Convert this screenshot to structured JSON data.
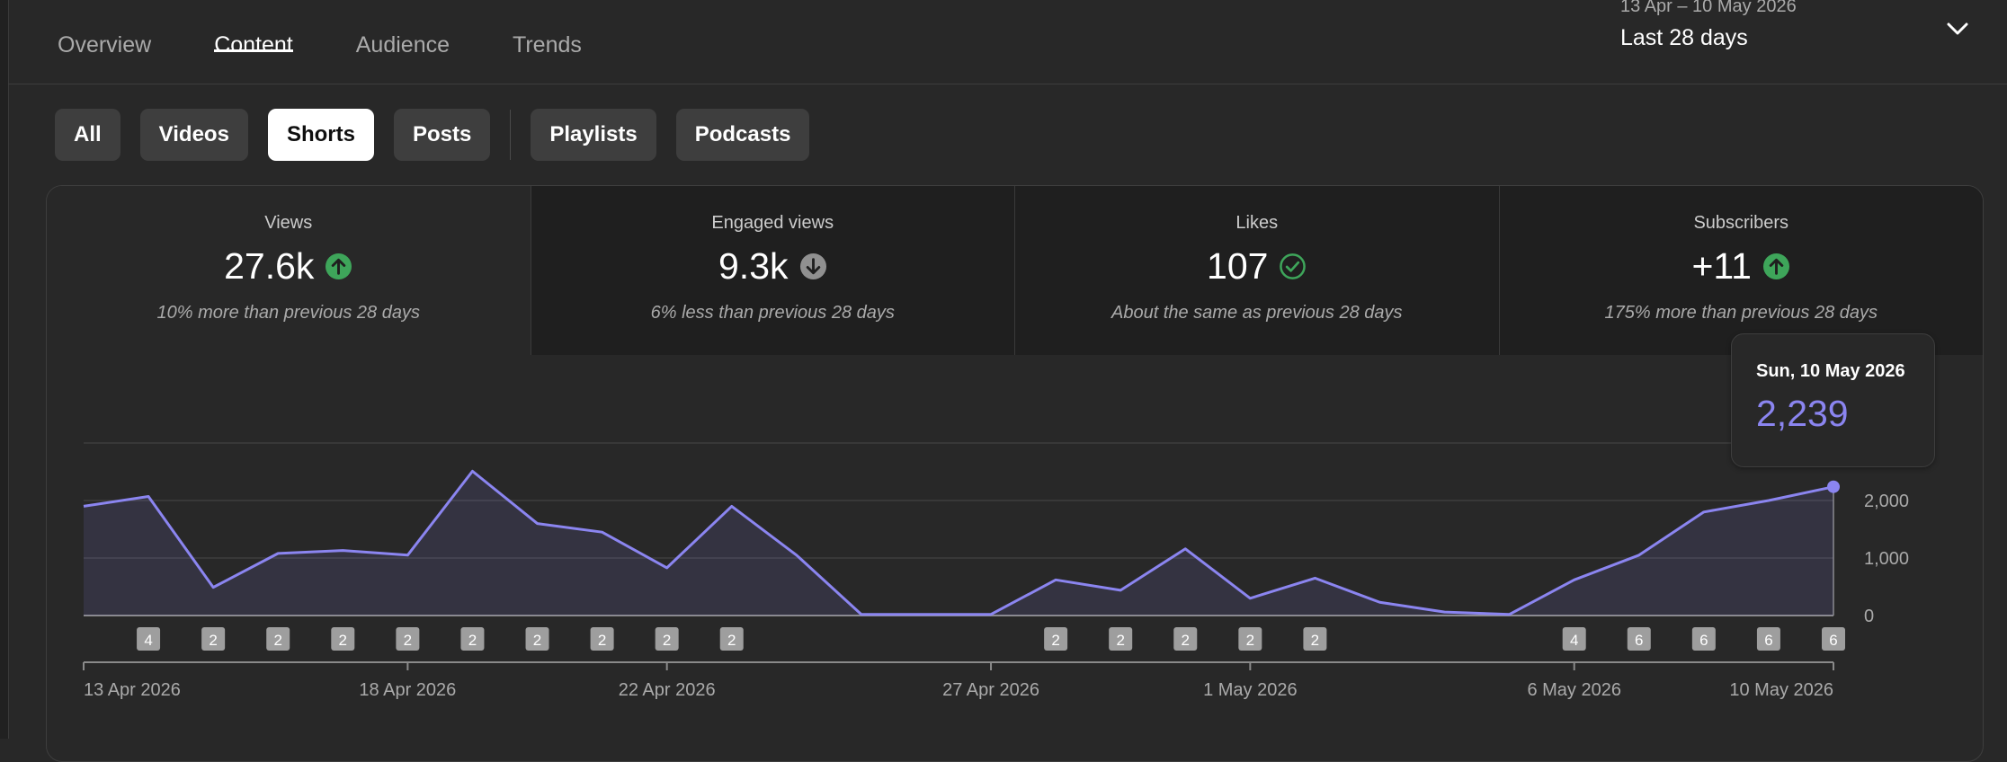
{
  "tabs": [
    {
      "label": "Overview",
      "active": false
    },
    {
      "label": "Content",
      "active": true
    },
    {
      "label": "Audience",
      "active": false
    },
    {
      "label": "Trends",
      "active": false
    }
  ],
  "date_picker": {
    "range": "13 Apr – 10 May 2026",
    "label": "Last 28 days",
    "icon": "chevron-down-icon"
  },
  "chips": [
    {
      "label": "All",
      "active": false
    },
    {
      "label": "Videos",
      "active": false
    },
    {
      "label": "Shorts",
      "active": true
    },
    {
      "label": "Posts",
      "active": false
    },
    {
      "label": "Playlists",
      "active": false
    },
    {
      "label": "Podcasts",
      "active": false
    }
  ],
  "metrics": [
    {
      "label": "Views",
      "value": "27.6k",
      "note": "10% more than previous 28 days",
      "trend": "up",
      "icon": "arrow-up-icon"
    },
    {
      "label": "Engaged views",
      "value": "9.3k",
      "note": "6% less than previous 28 days",
      "trend": "down",
      "icon": "arrow-down-icon"
    },
    {
      "label": "Likes",
      "value": "107",
      "note": "About the same as previous 28 days",
      "trend": "same",
      "icon": "check-circle-icon"
    },
    {
      "label": "Subscribers",
      "value": "+11",
      "note": "175% more than previous 28 days",
      "trend": "up",
      "icon": "arrow-up-icon"
    }
  ],
  "colors": {
    "accent": "#8b85f0",
    "up": "#3ea55a",
    "down": "#909090",
    "same": "#3ea55a"
  },
  "tooltip": {
    "date": "Sun, 10 May 2026",
    "value": "2,239"
  },
  "chart_data": {
    "type": "area",
    "x": [
      "13 Apr",
      "14 Apr",
      "15 Apr",
      "16 Apr",
      "17 Apr",
      "18 Apr",
      "19 Apr",
      "20 Apr",
      "21 Apr",
      "22 Apr",
      "23 Apr",
      "24 Apr",
      "25 Apr",
      "26 Apr",
      "27 Apr",
      "28 Apr",
      "29 Apr",
      "30 Apr",
      "1 May",
      "2 May",
      "3 May",
      "4 May",
      "5 May",
      "6 May",
      "7 May",
      "8 May",
      "9 May",
      "10 May"
    ],
    "values": [
      1900,
      2070,
      490,
      1080,
      1130,
      1050,
      2510,
      1600,
      1450,
      830,
      1900,
      1050,
      20,
      20,
      20,
      620,
      440,
      1160,
      300,
      650,
      230,
      60,
      20,
      620,
      1050,
      1800,
      2000,
      2239
    ],
    "ylim": [
      0,
      3000
    ],
    "y_ticks": [
      {
        "v": 0,
        "label": "0"
      },
      {
        "v": 1000,
        "label": "1,000"
      },
      {
        "v": 2000,
        "label": "2,000"
      },
      {
        "v": 3000,
        "label": ""
      }
    ],
    "x_tick_labels": [
      {
        "i": 0,
        "label": "13 Apr 2026"
      },
      {
        "i": 5,
        "label": "18 Apr 2026"
      },
      {
        "i": 9,
        "label": "22 Apr 2026"
      },
      {
        "i": 14,
        "label": "27 Apr 2026"
      },
      {
        "i": 18,
        "label": "1 May 2026"
      },
      {
        "i": 23,
        "label": "6 May 2026"
      },
      {
        "i": 27,
        "label": "10 May 2026"
      }
    ],
    "badges": [
      {
        "i": 1,
        "label": "4"
      },
      {
        "i": 2,
        "label": "2"
      },
      {
        "i": 3,
        "label": "2"
      },
      {
        "i": 4,
        "label": "2"
      },
      {
        "i": 5,
        "label": "2"
      },
      {
        "i": 6,
        "label": "2"
      },
      {
        "i": 7,
        "label": "2"
      },
      {
        "i": 8,
        "label": "2"
      },
      {
        "i": 9,
        "label": "2"
      },
      {
        "i": 10,
        "label": "2"
      },
      {
        "i": 15,
        "label": "2"
      },
      {
        "i": 16,
        "label": "2"
      },
      {
        "i": 17,
        "label": "2"
      },
      {
        "i": 18,
        "label": "2"
      },
      {
        "i": 19,
        "label": "2"
      },
      {
        "i": 23,
        "label": "4"
      },
      {
        "i": 24,
        "label": "6"
      },
      {
        "i": 25,
        "label": "6"
      },
      {
        "i": 26,
        "label": "6"
      },
      {
        "i": 27,
        "label": "6"
      }
    ],
    "highlight_index": 27,
    "grid": true
  }
}
